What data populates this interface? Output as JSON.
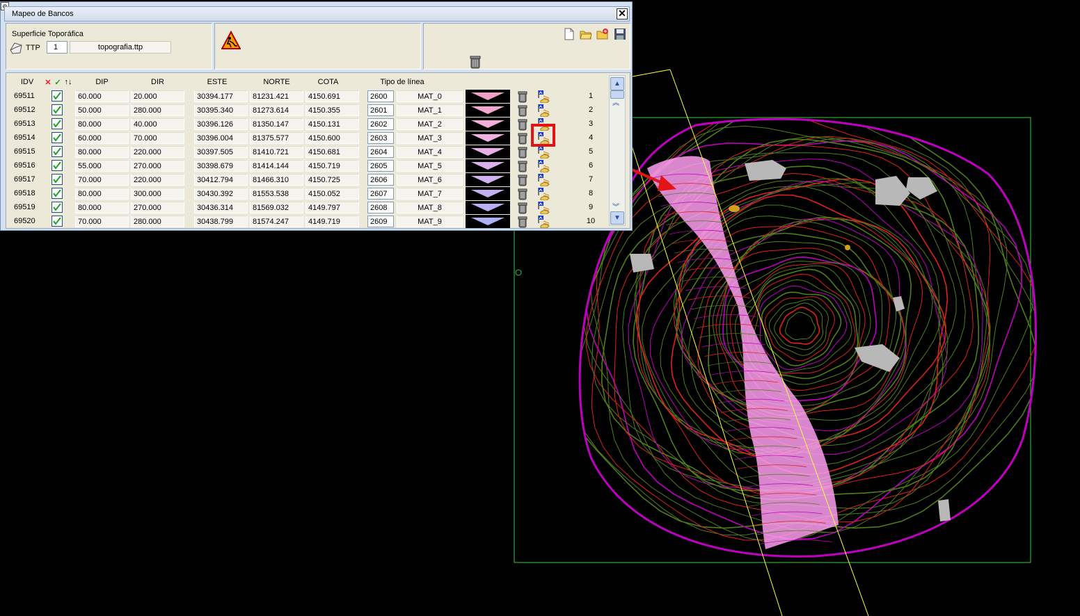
{
  "window": {
    "title": "Mapeo de Bancos",
    "close_glyph": "✕"
  },
  "surface": {
    "label": "Superficie Topoгáfica",
    "ttp_label": "TTP",
    "ttp_number": "1",
    "file_name": "topografia.ttp"
  },
  "toolbar": {
    "icons": [
      "new-file-icon",
      "open-folder-icon",
      "add-folder-icon",
      "save-disk-icon",
      "trash-icon",
      "warning-excavation-icon"
    ]
  },
  "grid": {
    "headers": {
      "idv": "IDV",
      "dip": "DIP",
      "dir": "DIR",
      "este": "ESTE",
      "norte": "NORTE",
      "cota": "COTA",
      "tipo": "Tipo de línea"
    },
    "rows": [
      {
        "idv": "69511",
        "dip": "60.000",
        "dir": "20.000",
        "este": "30394.177",
        "norte": "81231.421",
        "cota": "4150.691",
        "code": "2600",
        "mat": "MAT_0",
        "num": "1",
        "color": "#f0a0c8"
      },
      {
        "idv": "69512",
        "dip": "50.000",
        "dir": "280.000",
        "este": "30395.340",
        "norte": "81273.614",
        "cota": "4150.355",
        "code": "2601",
        "mat": "MAT_1",
        "num": "2",
        "color": "#f2a6d0"
      },
      {
        "idv": "69513",
        "dip": "80.000",
        "dir": "40.000",
        "este": "30396.126",
        "norte": "81350.147",
        "cota": "4150.131",
        "code": "2602",
        "mat": "MAT_2",
        "num": "3",
        "color": "#f4acd8"
      },
      {
        "idv": "69514",
        "dip": "60.000",
        "dir": "70.000",
        "este": "30396.004",
        "norte": "81375.577",
        "cota": "4150.600",
        "code": "2603",
        "mat": "MAT_3",
        "num": "4",
        "color": "#f0b0e0"
      },
      {
        "idv": "69515",
        "dip": "80.000",
        "dir": "220.000",
        "este": "30397.505",
        "norte": "81410.721",
        "cota": "4150.681",
        "code": "2604",
        "mat": "MAT_4",
        "num": "5",
        "color": "#e8b0e8"
      },
      {
        "idv": "69516",
        "dip": "55.000",
        "dir": "270.000",
        "este": "30398.679",
        "norte": "81414.144",
        "cota": "4150.719",
        "code": "2605",
        "mat": "MAT_5",
        "num": "6",
        "color": "#dcb0ec"
      },
      {
        "idv": "69517",
        "dip": "70.000",
        "dir": "220.000",
        "este": "30412.794",
        "norte": "81466.310",
        "cota": "4150.725",
        "code": "2606",
        "mat": "MAT_6",
        "num": "7",
        "color": "#d0b0f0"
      },
      {
        "idv": "69518",
        "dip": "80.000",
        "dir": "300.000",
        "este": "30430.392",
        "norte": "81553.538",
        "cota": "4150.052",
        "code": "2607",
        "mat": "MAT_7",
        "num": "8",
        "color": "#c4b0f0"
      },
      {
        "idv": "69519",
        "dip": "80.000",
        "dir": "270.000",
        "este": "30436.314",
        "norte": "81569.032",
        "cota": "4149.797",
        "code": "2608",
        "mat": "MAT_8",
        "num": "9",
        "color": "#b8b0f4"
      },
      {
        "idv": "69520",
        "dip": "70.000",
        "dir": "280.000",
        "este": "30438.799",
        "norte": "81574.247",
        "cota": "4149.719",
        "code": "2609",
        "mat": "MAT_9",
        "num": "10",
        "color": "#acb0f4"
      }
    ]
  },
  "scrollbar": {
    "up": "▲",
    "down": "▼",
    "page_up": "︽",
    "page_down": "︾"
  },
  "colors": {
    "contour_green": "#4f7d1a",
    "contour_red": "#e02020",
    "contour_magenta": "#c000c0",
    "pink_band": "#ff9ff0",
    "frame_green": "#3ac83a",
    "yellow_line": "#ffff40",
    "arrow_red": "#e21414"
  }
}
